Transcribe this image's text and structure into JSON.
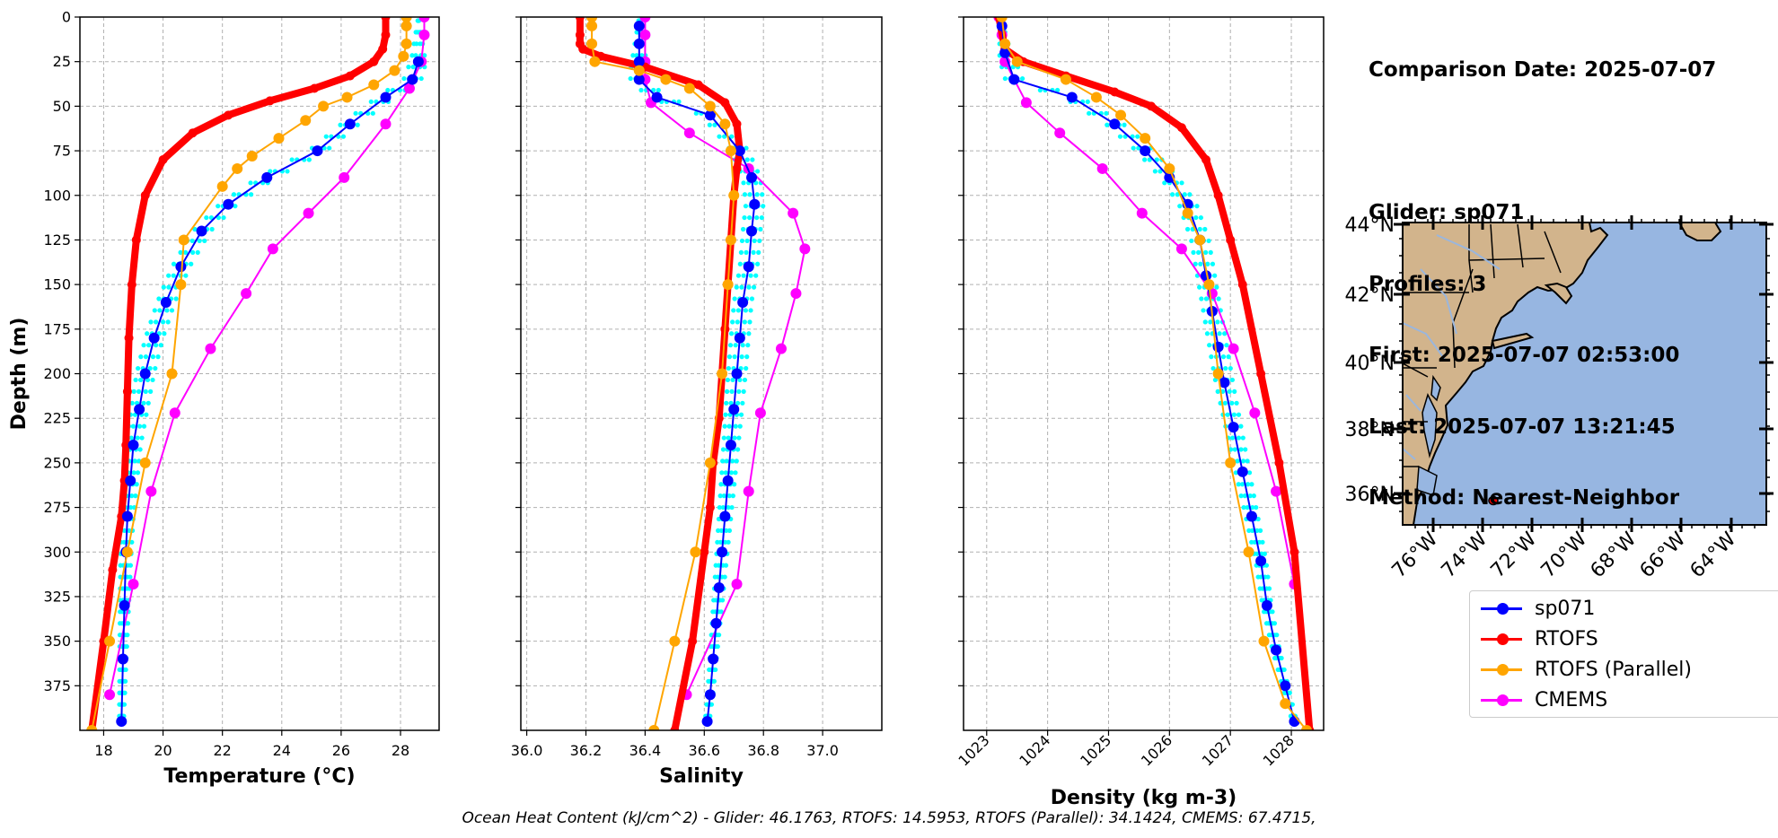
{
  "info": {
    "comparison_date": "Comparison Date: 2025-07-07",
    "glider": "Glider: sp071",
    "profiles": "Profiles: 3",
    "first": "First: 2025-07-07 02:53:00",
    "last": "Last: 2025-07-07 13:21:45",
    "method": "Method: Nearest-Neighbor"
  },
  "footer_text": "Ocean Heat Content (kJ/cm^2) - Glider: 46.1763,  RTOFS: 14.5953,  RTOFS (Parallel): 34.1424,  CMEMS: 67.4715,",
  "legend": [
    {
      "label": "sp071",
      "color": "#0000ff"
    },
    {
      "label": "RTOFS",
      "color": "#ff0000"
    },
    {
      "label": "RTOFS (Parallel)",
      "color": "#ffa500"
    },
    {
      "label": "CMEMS",
      "color": "#ff00ff"
    }
  ],
  "colors": {
    "glider": "#0000ff",
    "rtofs": "#ff0000",
    "parallel": "#ffa500",
    "cmems": "#ff00ff",
    "glider_raw": "#00ffff",
    "land": "#d2b48c",
    "ocean": "#97b6e1"
  },
  "chart_data": [
    {
      "type": "line",
      "xlabel": "Temperature (°C)",
      "ylabel": "Depth (m)",
      "xlim": [
        17.2,
        29.3
      ],
      "ylim": [
        400,
        0
      ],
      "xticks": [
        "18",
        "20",
        "22",
        "24",
        "26",
        "28"
      ],
      "yticks": [
        "0",
        "25",
        "50",
        "75",
        "100",
        "125",
        "150",
        "175",
        "200",
        "225",
        "250",
        "275",
        "300",
        "325",
        "350",
        "375"
      ],
      "grid": true,
      "series": [
        {
          "name": "sp071",
          "x": [
            28.6,
            28.4,
            27.5,
            26.3,
            25.2,
            23.5,
            22.2,
            21.3,
            20.6,
            20.1,
            19.7,
            19.4,
            19.2,
            19.0,
            18.9,
            18.8,
            18.75,
            18.7,
            18.65,
            18.6
          ],
          "y": [
            25,
            35,
            45,
            60,
            75,
            90,
            105,
            120,
            140,
            160,
            180,
            200,
            220,
            240,
            260,
            280,
            300,
            330,
            360,
            395
          ]
        },
        {
          "name": "RTOFS",
          "x": [
            27.5,
            27.5,
            27.4,
            27.1,
            26.3,
            25.1,
            23.6,
            22.2,
            21.0,
            20.0,
            19.4,
            19.1,
            18.95,
            18.85,
            18.8,
            18.75,
            18.7,
            18.6,
            18.3,
            18.0,
            17.6
          ],
          "y": [
            0,
            10,
            18,
            25,
            33,
            40,
            47,
            55,
            65,
            80,
            100,
            125,
            150,
            180,
            210,
            240,
            260,
            280,
            310,
            350,
            400
          ]
        },
        {
          "name": "RTOFS (Parallel)",
          "x": [
            28.2,
            28.2,
            28.2,
            28.1,
            27.8,
            27.1,
            26.2,
            25.4,
            24.8,
            23.9,
            23.0,
            22.5,
            22.0,
            20.7,
            20.6,
            20.3,
            19.4,
            18.8,
            18.2,
            17.6
          ],
          "y": [
            0,
            5,
            15,
            22,
            30,
            38,
            45,
            50,
            58,
            68,
            78,
            85,
            95,
            125,
            150,
            200,
            250,
            300,
            350,
            400
          ]
        },
        {
          "name": "CMEMS",
          "x": [
            28.8,
            28.8,
            28.7,
            28.3,
            27.5,
            26.1,
            24.9,
            23.7,
            22.8,
            21.6,
            20.4,
            19.6,
            19.0,
            18.2
          ],
          "y": [
            0,
            10,
            25,
            40,
            60,
            90,
            110,
            130,
            155,
            186,
            222,
            266,
            318,
            380
          ]
        }
      ]
    },
    {
      "type": "line",
      "xlabel": "Salinity",
      "xlim": [
        35.98,
        37.2
      ],
      "ylim": [
        400,
        0
      ],
      "xticks": [
        "36.0",
        "36.2",
        "36.4",
        "36.6",
        "36.8",
        "37.0"
      ],
      "grid": true,
      "series": [
        {
          "name": "sp071",
          "x": [
            36.38,
            36.38,
            36.38,
            36.38,
            36.44,
            36.62,
            36.72,
            36.76,
            36.77,
            36.76,
            36.75,
            36.73,
            36.72,
            36.71,
            36.7,
            36.69,
            36.68,
            36.67,
            36.66,
            36.65,
            36.64,
            36.63,
            36.62,
            36.61
          ],
          "y": [
            5,
            15,
            25,
            35,
            45,
            55,
            75,
            90,
            105,
            120,
            140,
            160,
            180,
            200,
            220,
            240,
            260,
            280,
            300,
            320,
            340,
            360,
            380,
            395
          ]
        },
        {
          "name": "RTOFS",
          "x": [
            36.18,
            36.18,
            36.18,
            36.19,
            36.25,
            36.4,
            36.58,
            36.67,
            36.71,
            36.72,
            36.71,
            36.7,
            36.69,
            36.68,
            36.67,
            36.66,
            36.65,
            36.63,
            36.62,
            36.6,
            36.56,
            36.5
          ],
          "y": [
            0,
            10,
            15,
            18,
            22,
            28,
            38,
            48,
            60,
            75,
            85,
            100,
            125,
            150,
            175,
            200,
            225,
            250,
            275,
            300,
            350,
            400
          ]
        },
        {
          "name": "RTOFS (Parallel)",
          "x": [
            36.22,
            36.22,
            36.22,
            36.23,
            36.38,
            36.47,
            36.55,
            36.62,
            36.67,
            36.69,
            36.7,
            36.69,
            36.68,
            36.66,
            36.62,
            36.57,
            36.5,
            36.43
          ],
          "y": [
            0,
            5,
            15,
            25,
            30,
            35,
            40,
            50,
            60,
            75,
            100,
            125,
            150,
            200,
            250,
            300,
            350,
            400
          ]
        },
        {
          "name": "CMEMS",
          "x": [
            36.4,
            36.4,
            36.4,
            36.4,
            36.42,
            36.55,
            36.75,
            36.9,
            36.94,
            36.91,
            36.86,
            36.79,
            36.75,
            36.71,
            36.54
          ],
          "y": [
            0,
            10,
            25,
            35,
            48,
            65,
            85,
            110,
            130,
            155,
            186,
            222,
            266,
            318,
            380
          ]
        }
      ]
    },
    {
      "type": "line",
      "xlabel": "Density (kg m-3)",
      "xlim": [
        1022.62,
        1028.53
      ],
      "ylim": [
        400,
        0
      ],
      "xticks": [
        "1023",
        "1024",
        "1025",
        "1026",
        "1027",
        "1028"
      ],
      "grid": true,
      "series": [
        {
          "name": "sp071",
          "x": [
            1023.25,
            1023.3,
            1023.45,
            1024.4,
            1025.1,
            1025.6,
            1026.0,
            1026.3,
            1026.5,
            1026.6,
            1026.7,
            1026.8,
            1026.9,
            1027.05,
            1027.2,
            1027.35,
            1027.5,
            1027.6,
            1027.75,
            1027.9,
            1028.05
          ],
          "y": [
            5,
            20,
            35,
            45,
            60,
            75,
            90,
            105,
            125,
            145,
            165,
            185,
            205,
            230,
            255,
            280,
            305,
            330,
            355,
            375,
            395
          ]
        },
        {
          "name": "RTOFS",
          "x": [
            1023.2,
            1023.3,
            1023.6,
            1024.3,
            1025.1,
            1025.7,
            1026.2,
            1026.6,
            1026.8,
            1027.0,
            1027.2,
            1027.5,
            1027.8,
            1028.05,
            1028.3
          ],
          "y": [
            0,
            18,
            25,
            33,
            42,
            50,
            62,
            80,
            100,
            125,
            150,
            200,
            250,
            300,
            400
          ]
        },
        {
          "name": "RTOFS (Parallel)",
          "x": [
            1023.25,
            1023.3,
            1023.5,
            1024.3,
            1024.8,
            1025.2,
            1025.6,
            1026.0,
            1026.3,
            1026.5,
            1026.65,
            1026.8,
            1027.0,
            1027.3,
            1027.55,
            1027.9,
            1028.25
          ],
          "y": [
            0,
            15,
            25,
            35,
            45,
            55,
            68,
            85,
            110,
            125,
            150,
            200,
            250,
            300,
            350,
            385,
            400
          ]
        },
        {
          "name": "CMEMS",
          "x": [
            1023.2,
            1023.25,
            1023.3,
            1023.65,
            1024.2,
            1024.9,
            1025.55,
            1026.2,
            1026.7,
            1027.05,
            1027.4,
            1027.75,
            1028.05
          ],
          "y": [
            0,
            10,
            25,
            48,
            65,
            85,
            110,
            130,
            155,
            186,
            222,
            266,
            318
          ]
        }
      ]
    }
  ],
  "map": {
    "lat_labels": [
      "44°N",
      "42°N",
      "40°N",
      "38°N",
      "36°N"
    ],
    "lon_labels": [
      "76°W",
      "74°W",
      "72°W",
      "70°W",
      "68°W",
      "66°W",
      "64°W"
    ]
  }
}
